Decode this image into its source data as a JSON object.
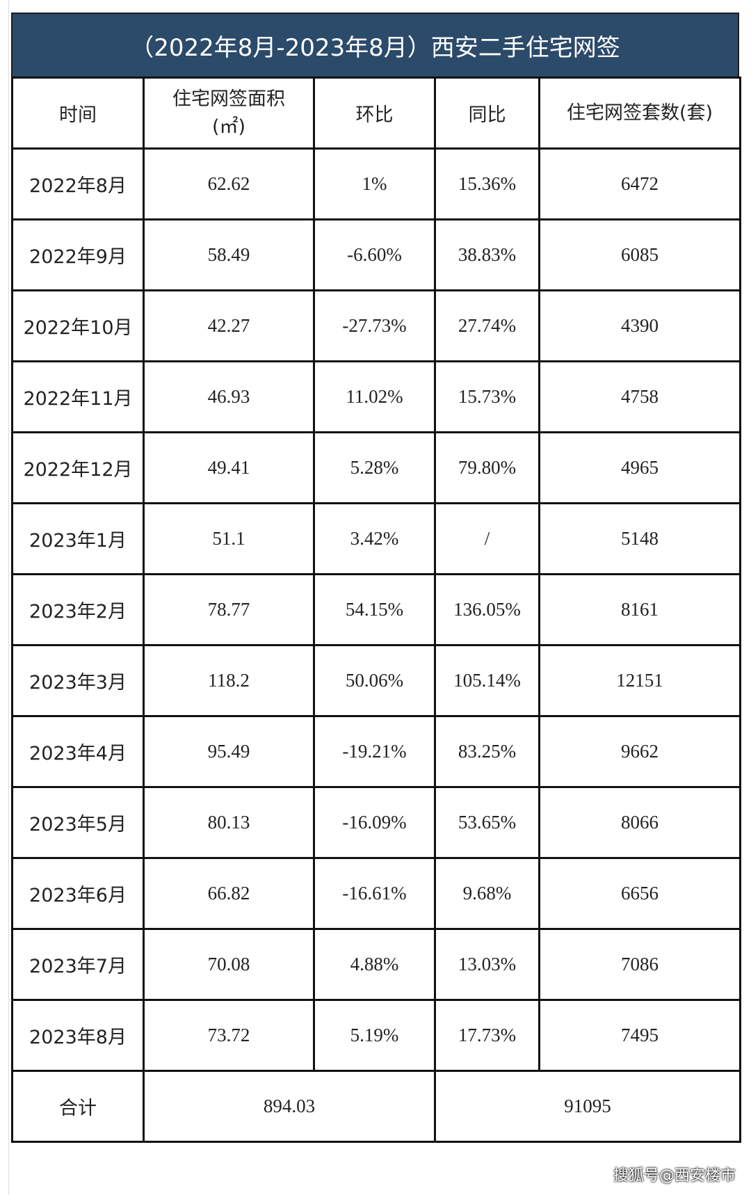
{
  "table": {
    "title": "（2022年8月-2023年8月）西安二手住宅网签",
    "header": [
      "时间",
      "住宅网签面积(㎡)",
      "环比",
      "同比",
      "住宅网签套数(套)"
    ],
    "rows": [
      [
        "2022年8月",
        "62.62",
        "1%",
        "15.36%",
        "6472"
      ],
      [
        "2022年9月",
        "58.49",
        "-6.60%",
        "38.83%",
        "6085"
      ],
      [
        "2022年10月",
        "42.27",
        "-27.73%",
        "27.74%",
        "4390"
      ],
      [
        "2022年11月",
        "46.93",
        "11.02%",
        "15.73%",
        "4758"
      ],
      [
        "2022年12月",
        "49.41",
        "5.28%",
        "79.80%",
        "4965"
      ],
      [
        "2023年1月",
        "51.1",
        "3.42%",
        "/",
        "5148"
      ],
      [
        "2023年2月",
        "78.77",
        "54.15%",
        "136.05%",
        "8161"
      ],
      [
        "2023年3月",
        "118.2",
        "50.06%",
        "105.14%",
        "12151"
      ],
      [
        "2023年4月",
        "95.49",
        "-19.21%",
        "83.25%",
        "9662"
      ],
      [
        "2023年5月",
        "80.13",
        "-16.09%",
        "53.65%",
        "8066"
      ],
      [
        "2023年6月",
        "66.82",
        "-16.61%",
        "9.68%",
        "6656"
      ],
      [
        "2023年7月",
        "70.08",
        "4.88%",
        "13.03%",
        "7086"
      ],
      [
        "2023年8月",
        "73.72",
        "5.19%",
        "17.73%",
        "7495"
      ]
    ],
    "total": [
      "合计",
      "894.03",
      "91095"
    ]
  },
  "watermark": "搜狐号@西安楼市"
}
